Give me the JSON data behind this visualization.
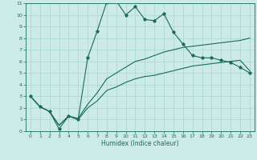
{
  "xlabel": "Humidex (Indice chaleur)",
  "xlim": [
    -0.5,
    23.5
  ],
  "ylim": [
    0,
    11
  ],
  "xticks": [
    0,
    1,
    2,
    3,
    4,
    5,
    6,
    7,
    8,
    9,
    10,
    11,
    12,
    13,
    14,
    15,
    16,
    17,
    18,
    19,
    20,
    21,
    22,
    23
  ],
  "yticks": [
    0,
    1,
    2,
    3,
    4,
    5,
    6,
    7,
    8,
    9,
    10,
    11
  ],
  "bg_color": "#cceae6",
  "line_color": "#1a6b5a",
  "grid_color": "#aad6d0",
  "line1_x": [
    0,
    1,
    2,
    3,
    4,
    5,
    6,
    7,
    8,
    9,
    10,
    11,
    12,
    13,
    14,
    15,
    16,
    17,
    18,
    19,
    20,
    21,
    22,
    23
  ],
  "line1_y": [
    3.0,
    2.1,
    1.7,
    0.2,
    1.3,
    1.0,
    6.3,
    8.6,
    11.1,
    11.2,
    10.0,
    10.7,
    9.6,
    9.5,
    10.1,
    8.5,
    7.5,
    6.5,
    6.3,
    6.3,
    6.1,
    5.9,
    5.5,
    5.0
  ],
  "line2_x": [
    0,
    1,
    2,
    3,
    4,
    5,
    6,
    7,
    8,
    9,
    10,
    11,
    12,
    13,
    14,
    15,
    16,
    17,
    18,
    19,
    20,
    21,
    22,
    23
  ],
  "line2_y": [
    3.0,
    2.1,
    1.7,
    0.5,
    1.3,
    1.1,
    2.3,
    3.3,
    4.5,
    5.0,
    5.5,
    6.0,
    6.2,
    6.5,
    6.8,
    7.0,
    7.2,
    7.3,
    7.4,
    7.5,
    7.6,
    7.7,
    7.8,
    8.0
  ],
  "line3_x": [
    0,
    1,
    2,
    3,
    4,
    5,
    6,
    7,
    8,
    9,
    10,
    11,
    12,
    13,
    14,
    15,
    16,
    17,
    18,
    19,
    20,
    21,
    22,
    23
  ],
  "line3_y": [
    3.0,
    2.1,
    1.7,
    0.5,
    1.3,
    1.0,
    2.0,
    2.6,
    3.5,
    3.8,
    4.2,
    4.5,
    4.7,
    4.8,
    5.0,
    5.2,
    5.4,
    5.6,
    5.7,
    5.8,
    5.9,
    6.0,
    6.1,
    5.2
  ]
}
